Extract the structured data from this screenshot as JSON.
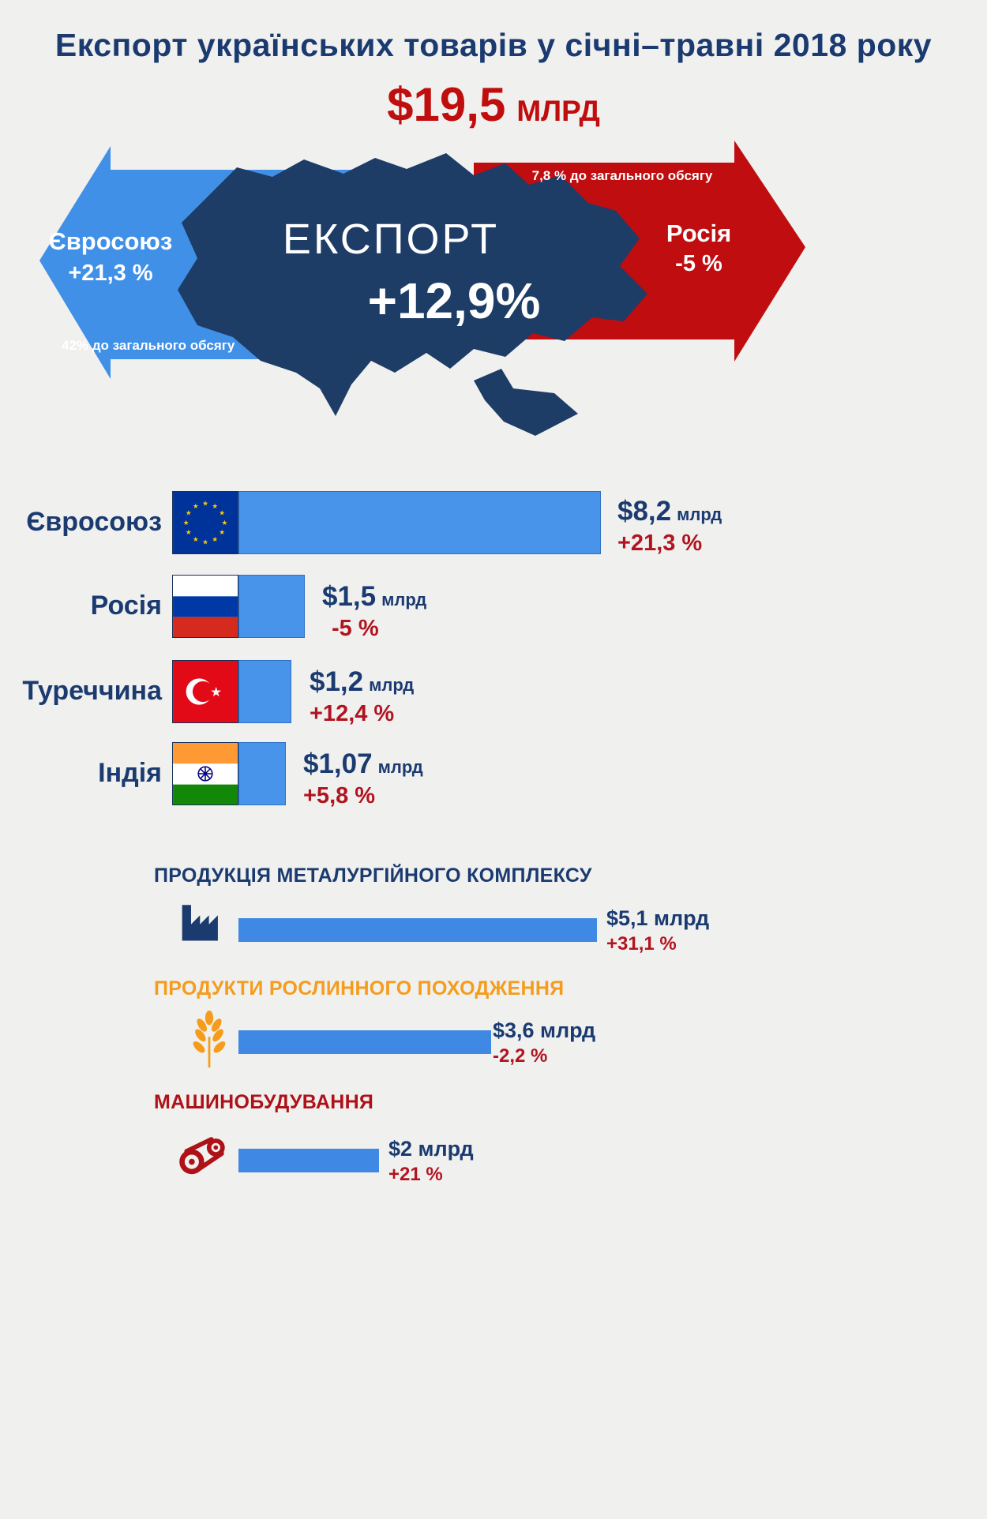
{
  "title": "Експорт українських товарів у січні–травні 2018 року",
  "total": {
    "value": "$19,5",
    "unit": "МЛРД"
  },
  "map_section": {
    "export_label": "ЕКСПОРТ",
    "export_change": "+12,9%"
  },
  "colors": {
    "navy_text": "#1a3a70",
    "map_fill": "#1d3c66",
    "blue_arrow": "#4090e8",
    "red_arrow": "#c00d10",
    "bar_blue": "#4894ea",
    "category_bar_blue": "#3f88e4",
    "accent_red": "#c00d0d",
    "orange": "#f59c1c",
    "dark_red": "#ae1117"
  },
  "chart_data": {
    "type": "bar",
    "title": "Експорт українських товарів у січні–травні 2018 року",
    "total_exports_label": "$19,5 МЛРД",
    "overall_change_pct": 12.9,
    "legend_position": "none",
    "grid": false,
    "partners": [
      {
        "name": "Євросоюз",
        "flag": "eu-flag",
        "value_bln_usd": 8.2,
        "value_label": "$8,2",
        "unit": "млрд",
        "change": "+21,3 %",
        "share_note": "42% до загального обсягу"
      },
      {
        "name": "Росія",
        "flag": "russia-flag",
        "value_bln_usd": 1.5,
        "value_label": "$1,5",
        "unit": "млрд",
        "change": "-5 %",
        "share_note": "7,8 % до загального обсягу"
      },
      {
        "name": "Туреччина",
        "flag": "turkey-flag",
        "value_bln_usd": 1.2,
        "value_label": "$1,2",
        "unit": "млрд",
        "change": "+12,4 %"
      },
      {
        "name": "Індія",
        "flag": "india-flag",
        "value_bln_usd": 1.07,
        "value_label": "$1,07",
        "unit": "млрд",
        "change": "+5,8 %"
      }
    ],
    "categories": [
      {
        "name": "ПРОДУКЦІЯ МЕТАЛУРГІЙНОГО КОМПЛЕКСУ",
        "icon": "factory-icon",
        "value_bln_usd": 5.1,
        "value_label": "$5,1 млрд",
        "change": "+31,1 %"
      },
      {
        "name": "ПРОДУКТИ РОСЛИННОГО ПОХОДЖЕННЯ",
        "icon": "wheat-icon",
        "value_bln_usd": 3.6,
        "value_label": "$3,6 млрд",
        "change": "-2,2 %"
      },
      {
        "name": "МАШИНОБУДУВАННЯ",
        "icon": "machinery-icon",
        "value_bln_usd": 2.0,
        "value_label": "$2 млрд",
        "change": "+21 %"
      }
    ]
  }
}
